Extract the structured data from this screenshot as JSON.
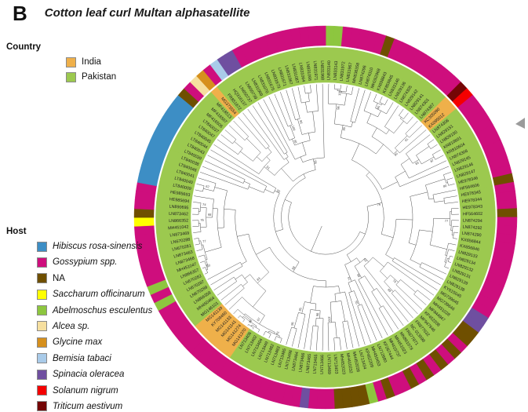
{
  "panel_label": "B",
  "title": "Cotton leaf curl Multan alphasatellite",
  "legend_country": {
    "heading": "Country",
    "items": [
      {
        "label": "India",
        "key": "IN",
        "color": "#EFB04A",
        "italic": false
      },
      {
        "label": "Pakistan",
        "key": "PK",
        "color": "#9CC94F",
        "italic": false
      }
    ]
  },
  "legend_host": {
    "heading": "Host",
    "items": [
      {
        "label": "Hibiscus rosa-sinensis",
        "key": "hibiscus",
        "color": "#3D8EC5",
        "italic": true
      },
      {
        "label": "Gossypium spp.",
        "key": "gossypium",
        "color": "#CE0E7D",
        "italic": true
      },
      {
        "label": "NA",
        "key": "na",
        "color": "#6F4F00",
        "italic": false
      },
      {
        "label": "Saccharum officinarum",
        "key": "saccharum",
        "color": "#FFFF00",
        "italic": true
      },
      {
        "label": "Abelmoschus esculentus",
        "key": "abelmoschus",
        "color": "#8DC63F",
        "italic": true
      },
      {
        "label": "Alcea sp.",
        "key": "alcea",
        "color": "#F6DF9F",
        "italic": true
      },
      {
        "label": "Glycine max",
        "key": "glycine",
        "color": "#D6901D",
        "italic": true
      },
      {
        "label": "Bemisia tabaci",
        "key": "bemisia",
        "color": "#A9CBE9",
        "italic": true
      },
      {
        "label": "Spinacia oleracea",
        "key": "spinacia",
        "color": "#6F4FA0",
        "italic": true
      },
      {
        "label": "Solanum nigrum",
        "key": "solanum",
        "color": "#F40000",
        "italic": true
      },
      {
        "label": "Triticum aestivum",
        "key": "triticum",
        "color": "#740606",
        "italic": true
      }
    ]
  },
  "chart_data": {
    "type": "circular_phylogenetic_tree",
    "title": "Cotton leaf curl Multan alphasatellite",
    "rings": [
      "inner: tree with bootstrap values",
      "middle: country of isolate (label background)",
      "outer: host"
    ],
    "bootstrap_values": [
      100,
      98,
      96,
      95,
      91,
      90,
      87,
      83,
      80,
      77,
      76,
      74,
      68,
      62,
      58,
      55,
      51
    ],
    "leaves": [
      {
        "id": "LN833140",
        "country": "PK",
        "host": "abelmoschus"
      },
      {
        "id": "LN833143",
        "country": "PK",
        "host": "abelmoschus"
      },
      {
        "id": "LN831972",
        "country": "PK",
        "host": "gossypium"
      },
      {
        "id": "LN831967",
        "country": "PK",
        "host": "gossypium"
      },
      {
        "id": "MH836358",
        "country": "PK",
        "host": "gossypium"
      },
      {
        "id": "LN874296",
        "country": "PK",
        "host": "gossypium"
      },
      {
        "id": "LN874310",
        "country": "PK",
        "host": "gossypium"
      },
      {
        "id": "MH262968",
        "country": "PK",
        "host": "na"
      },
      {
        "id": "KX698843",
        "country": "PK",
        "host": "gossypium"
      },
      {
        "id": "KX859845",
        "country": "PK",
        "host": "gossypium"
      },
      {
        "id": "LN833146",
        "country": "PK",
        "host": "gossypium"
      },
      {
        "id": "LN829136",
        "country": "PK",
        "host": "gossypium"
      },
      {
        "id": "LN874305",
        "country": "PK",
        "host": "gossypium"
      },
      {
        "id": "LN829142",
        "country": "PK",
        "host": "gossypium"
      },
      {
        "id": "LN829141",
        "country": "PK",
        "host": "gossypium"
      },
      {
        "id": "LN874301",
        "country": "PK",
        "host": "gossypium"
      },
      {
        "id": "LN874307",
        "country": "PK",
        "host": "gossypium"
      },
      {
        "id": "KC305090",
        "country": "IN",
        "host": "triticum"
      },
      {
        "id": "KX095012",
        "country": "IN",
        "host": "solanum"
      },
      {
        "id": "LN874306",
        "country": "PK",
        "host": "gossypium"
      },
      {
        "id": "LN829151",
        "country": "PK",
        "host": "gossypium"
      },
      {
        "id": "LN829150",
        "country": "PK",
        "host": "gossypium"
      },
      {
        "id": "KR810601",
        "country": "PK",
        "host": "gossypium"
      },
      {
        "id": "KR810604",
        "country": "PK",
        "host": "gossypium"
      },
      {
        "id": "LN874308",
        "country": "PK",
        "host": "gossypium"
      },
      {
        "id": "LN829145",
        "country": "PK",
        "host": "gossypium"
      },
      {
        "id": "LN829146",
        "country": "PK",
        "host": "gossypium"
      },
      {
        "id": "LN829147",
        "country": "PK",
        "host": "gossypium"
      },
      {
        "id": "HE978346",
        "country": "PK",
        "host": "gossypium"
      },
      {
        "id": "HF564606",
        "country": "PK",
        "host": "na"
      },
      {
        "id": "HE978345",
        "country": "PK",
        "host": "gossypium"
      },
      {
        "id": "HE978344",
        "country": "PK",
        "host": "gossypium"
      },
      {
        "id": "HE978343",
        "country": "PK",
        "host": "gossypium"
      },
      {
        "id": "HF564602",
        "country": "PK",
        "host": "na"
      },
      {
        "id": "LN874294",
        "country": "PK",
        "host": "gossypium"
      },
      {
        "id": "LN874292",
        "country": "PK",
        "host": "gossypium"
      },
      {
        "id": "LN874290",
        "country": "PK",
        "host": "gossypium"
      },
      {
        "id": "KX656844",
        "country": "PK",
        "host": "gossypium"
      },
      {
        "id": "KX656846",
        "country": "PK",
        "host": "gossypium"
      },
      {
        "id": "LN829133",
        "country": "PK",
        "host": "gossypium"
      },
      {
        "id": "LN829134",
        "country": "PK",
        "host": "gossypium"
      },
      {
        "id": "LN829132",
        "country": "PK",
        "host": "gossypium"
      },
      {
        "id": "LN829131",
        "country": "PK",
        "host": "gossypium"
      },
      {
        "id": "LN829139",
        "country": "PK",
        "host": "gossypium"
      },
      {
        "id": "LN829138",
        "country": "PK",
        "host": "gossypium"
      },
      {
        "id": "KY615045",
        "country": "PK",
        "host": "gossypium"
      },
      {
        "id": "MG739645",
        "country": "PK",
        "host": "spinacia"
      },
      {
        "id": "MG739646",
        "country": "PK",
        "host": "spinacia"
      },
      {
        "id": "MH451028",
        "country": "PK",
        "host": "na"
      },
      {
        "id": "MF944947",
        "country": "PK",
        "host": "na"
      },
      {
        "id": "KP452208",
        "country": "PK",
        "host": "gossypium"
      },
      {
        "id": "MF947946",
        "country": "PK",
        "host": "na"
      },
      {
        "id": "FR877632",
        "country": "PK",
        "host": "gossypium"
      },
      {
        "id": "NC 013598",
        "country": "PK",
        "host": "na"
      },
      {
        "id": "FR877871",
        "country": "PK",
        "host": "gossypium"
      },
      {
        "id": "MN861078",
        "country": "PK",
        "host": "na"
      },
      {
        "id": "MH451023",
        "country": "PK",
        "host": "gossypium"
      },
      {
        "id": "MH410737",
        "country": "PK",
        "host": "na"
      },
      {
        "id": "KF267444",
        "country": "PK",
        "host": "gossypium"
      },
      {
        "id": "LN712680",
        "country": "PK",
        "host": "gossypium"
      },
      {
        "id": "MH450453",
        "country": "PK",
        "host": "na"
      },
      {
        "id": "KP452209",
        "country": "PK",
        "host": "gossypium"
      },
      {
        "id": "LN713434",
        "country": "PK",
        "host": "abelmoschus"
      },
      {
        "id": "MH452028",
        "country": "PK",
        "host": "na"
      },
      {
        "id": "MH410232",
        "country": "PK",
        "host": "na"
      },
      {
        "id": "MH452023",
        "country": "PK",
        "host": "na"
      },
      {
        "id": "LN713403",
        "country": "PK",
        "host": "na"
      },
      {
        "id": "LN713489",
        "country": "PK",
        "host": "gossypium"
      },
      {
        "id": "LN713466",
        "country": "PK",
        "host": "gossypium"
      },
      {
        "id": "LN713465",
        "country": "PK",
        "host": "gossypium"
      },
      {
        "id": "LN873465",
        "country": "PK",
        "host": "spinacia"
      },
      {
        "id": "LN873466",
        "country": "PK",
        "host": "gossypium"
      },
      {
        "id": "LN873464",
        "country": "PK",
        "host": "gossypium"
      },
      {
        "id": "LN713498",
        "country": "PK",
        "host": "gossypium"
      },
      {
        "id": "LN713485",
        "country": "PK",
        "host": "gossypium"
      },
      {
        "id": "LN713483",
        "country": "PK",
        "host": "gossypium"
      },
      {
        "id": "LN713482",
        "country": "PK",
        "host": "gossypium"
      },
      {
        "id": "LN713449",
        "country": "PK",
        "host": "gossypium"
      },
      {
        "id": "LN713404",
        "country": "PK",
        "host": "gossypium"
      },
      {
        "id": "LN713402",
        "country": "PK",
        "host": "gossypium"
      },
      {
        "id": "LN713406",
        "country": "PK",
        "host": "gossypium"
      },
      {
        "id": "MG141370",
        "country": "IN",
        "host": "gossypium"
      },
      {
        "id": "MG141274",
        "country": "IN",
        "host": "gossypium"
      },
      {
        "id": "MG141141",
        "country": "IN",
        "host": "gossypium"
      },
      {
        "id": "MG141133",
        "country": "IN",
        "host": "gossypium"
      },
      {
        "id": "KY709460",
        "country": "IN",
        "host": "gossypium"
      },
      {
        "id": "MG141139",
        "country": "IN",
        "host": "gossypium"
      },
      {
        "id": "MG146101",
        "country": "PK",
        "host": "gossypium"
      },
      {
        "id": "MH450464",
        "country": "PK",
        "host": "gossypium"
      },
      {
        "id": "LN866358",
        "country": "PK",
        "host": "gossypium"
      },
      {
        "id": "LN670289",
        "country": "PK",
        "host": "gossypium"
      },
      {
        "id": "LN670287",
        "country": "PK",
        "host": "abelmoschus"
      },
      {
        "id": "LN670282",
        "country": "PK",
        "host": "gossypium"
      },
      {
        "id": "LN866357",
        "country": "PK",
        "host": "abelmoschus"
      },
      {
        "id": "MH451047",
        "country": "PK",
        "host": "gossypium"
      },
      {
        "id": "LN873468",
        "country": "PK",
        "host": "gossypium"
      },
      {
        "id": "LN873463",
        "country": "PK",
        "host": "gossypium"
      },
      {
        "id": "LN670281",
        "country": "PK",
        "host": "gossypium"
      },
      {
        "id": "LN670288",
        "country": "PK",
        "host": "gossypium"
      },
      {
        "id": "LN873469",
        "country": "PK",
        "host": "gossypium"
      },
      {
        "id": "MH451042",
        "country": "PK",
        "host": "gossypium"
      },
      {
        "id": "LN866352",
        "country": "PK",
        "host": "saccharum"
      },
      {
        "id": "LN873462",
        "country": "PK",
        "host": "na"
      },
      {
        "id": "LN890695",
        "country": "PK",
        "host": "gossypium"
      },
      {
        "id": "HE985694",
        "country": "PK",
        "host": "gossypium"
      },
      {
        "id": "HE985693",
        "country": "PK",
        "host": "gossypium"
      },
      {
        "id": "LT840009",
        "country": "PK",
        "host": "hibiscus"
      },
      {
        "id": "LT840040",
        "country": "PK",
        "host": "hibiscus"
      },
      {
        "id": "LT840041",
        "country": "PK",
        "host": "hibiscus"
      },
      {
        "id": "LT840046",
        "country": "PK",
        "host": "hibiscus"
      },
      {
        "id": "LT840038",
        "country": "PK",
        "host": "hibiscus"
      },
      {
        "id": "LT840039",
        "country": "PK",
        "host": "hibiscus"
      },
      {
        "id": "LT840043",
        "country": "PK",
        "host": "hibiscus"
      },
      {
        "id": "LT840044",
        "country": "PK",
        "host": "hibiscus"
      },
      {
        "id": "LT840045",
        "country": "PK",
        "host": "hibiscus"
      },
      {
        "id": "LT840047",
        "country": "PK",
        "host": "hibiscus"
      },
      {
        "id": "LT840037",
        "country": "PK",
        "host": "hibiscus"
      },
      {
        "id": "MF416506",
        "country": "PK",
        "host": "na"
      },
      {
        "id": "MF416507",
        "country": "PK",
        "host": "gossypium"
      },
      {
        "id": "MF416513",
        "country": "PK",
        "host": "alcea"
      },
      {
        "id": "MG373554",
        "country": "IN",
        "host": "glycine"
      },
      {
        "id": "FR851672",
        "country": "PK",
        "host": "gossypium"
      },
      {
        "id": "HQ316137",
        "country": "PK",
        "host": "bemisia"
      },
      {
        "id": "LN650737",
        "country": "PK",
        "host": "spinacia"
      },
      {
        "id": "LN650739",
        "country": "PK",
        "host": "spinacia"
      },
      {
        "id": "LN831069",
        "country": "PK",
        "host": "gossypium"
      },
      {
        "id": "LN831070",
        "country": "PK",
        "host": "gossypium"
      },
      {
        "id": "LN831675",
        "country": "PK",
        "host": "gossypium"
      },
      {
        "id": "LN831673",
        "country": "PK",
        "host": "gossypium"
      },
      {
        "id": "LN831671",
        "country": "PK",
        "host": "gossypium"
      },
      {
        "id": "LN831067",
        "country": "PK",
        "host": "gossypium"
      },
      {
        "id": "LN831087",
        "country": "PK",
        "host": "gossypium"
      },
      {
        "id": "LN831064",
        "country": "PK",
        "host": "gossypium"
      },
      {
        "id": "LN831066",
        "country": "PK",
        "host": "gossypium"
      },
      {
        "id": "LN831971",
        "country": "PK",
        "host": "gossypium"
      },
      {
        "id": "LN831968",
        "country": "PK",
        "host": "gossypium"
      }
    ]
  }
}
